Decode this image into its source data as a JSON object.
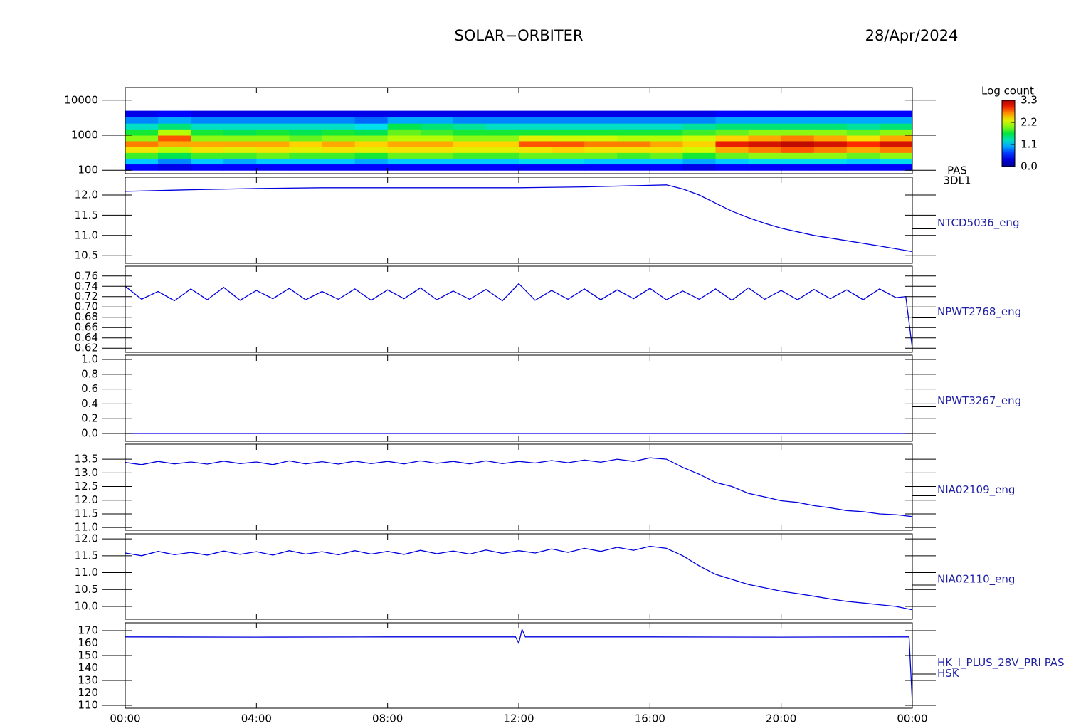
{
  "figure": {
    "title": "SOLAR−ORBITER",
    "date": "28/Apr/2024",
    "xlim": [
      0,
      24
    ],
    "xticks": [
      {
        "value": 0,
        "label": "00:00"
      },
      {
        "value": 4,
        "label": "04:00"
      },
      {
        "value": 8,
        "label": "08:00"
      },
      {
        "value": 12,
        "label": "12:00"
      },
      {
        "value": 16,
        "label": "16:00"
      },
      {
        "value": 20,
        "label": "20:00"
      },
      {
        "value": 24,
        "label": "00:00"
      }
    ]
  },
  "chart_data": [
    {
      "type": "heatmap",
      "label": [
        "PAS",
        "3DL1"
      ],
      "log_y": true,
      "ylim": [
        80,
        23000
      ],
      "yticks": [
        100,
        1000,
        10000
      ],
      "x": [
        0,
        1,
        2,
        3,
        4,
        5,
        6,
        7,
        8,
        9,
        10,
        11,
        12,
        13,
        14,
        15,
        16,
        17,
        18,
        19,
        20,
        21,
        22,
        23,
        24
      ],
      "y": [
        100,
        150,
        220,
        320,
        470,
        690,
        1000,
        1500,
        2200,
        3300,
        5000
      ],
      "z": [
        [
          0.5,
          1.1,
          1.8,
          2.4,
          2.7,
          2.0,
          1.7,
          1.3,
          0.9,
          0.4
        ],
        [
          0.4,
          0.9,
          1.6,
          2.1,
          2.6,
          2.8,
          2.1,
          1.5,
          1.0,
          0.5
        ],
        [
          0.5,
          1.1,
          1.8,
          2.4,
          2.6,
          2.0,
          1.7,
          1.3,
          0.9,
          0.4
        ],
        [
          0.5,
          1.0,
          1.8,
          2.3,
          2.6,
          2.0,
          1.6,
          1.3,
          0.9,
          0.4
        ],
        [
          0.5,
          1.1,
          1.9,
          2.4,
          2.6,
          2.0,
          1.7,
          1.3,
          0.9,
          0.4
        ],
        [
          0.5,
          1.1,
          1.8,
          2.3,
          2.5,
          1.9,
          1.6,
          1.3,
          0.9,
          0.4
        ],
        [
          0.5,
          1.1,
          1.8,
          2.4,
          2.6,
          2.0,
          1.7,
          1.3,
          0.9,
          0.4
        ],
        [
          0.5,
          1.0,
          1.7,
          2.3,
          2.5,
          2.0,
          1.6,
          1.2,
          0.8,
          0.4
        ],
        [
          0.5,
          1.1,
          1.9,
          2.4,
          2.6,
          2.1,
          1.9,
          1.6,
          1.0,
          0.4
        ],
        [
          0.5,
          1.1,
          1.9,
          2.4,
          2.6,
          2.1,
          1.8,
          1.5,
          1.0,
          0.4
        ],
        [
          0.5,
          1.1,
          1.8,
          2.3,
          2.5,
          2.0,
          1.7,
          1.4,
          0.9,
          0.4
        ],
        [
          0.5,
          1.1,
          1.8,
          2.3,
          2.5,
          2.0,
          1.7,
          1.3,
          0.9,
          0.4
        ],
        [
          0.5,
          1.2,
          1.9,
          2.4,
          2.8,
          2.3,
          1.7,
          1.3,
          0.9,
          0.4
        ],
        [
          0.5,
          1.2,
          1.9,
          2.5,
          2.8,
          2.2,
          1.7,
          1.3,
          0.9,
          0.4
        ],
        [
          0.5,
          1.1,
          1.9,
          2.4,
          2.7,
          2.2,
          1.7,
          1.3,
          0.9,
          0.4
        ],
        [
          0.5,
          1.1,
          1.8,
          2.4,
          2.7,
          2.1,
          1.7,
          1.3,
          0.9,
          0.4
        ],
        [
          0.5,
          1.1,
          1.9,
          2.4,
          2.6,
          2.1,
          1.7,
          1.3,
          0.9,
          0.4
        ],
        [
          0.4,
          1.0,
          1.7,
          2.2,
          2.5,
          2.2,
          1.8,
          1.4,
          0.9,
          0.4
        ],
        [
          0.5,
          1.1,
          1.9,
          2.6,
          3.0,
          2.5,
          1.9,
          1.5,
          1.0,
          0.5
        ],
        [
          0.5,
          1.2,
          2.0,
          2.7,
          3.1,
          2.6,
          2.0,
          1.5,
          1.0,
          0.5
        ],
        [
          0.5,
          1.2,
          2.0,
          2.8,
          3.2,
          2.7,
          2.0,
          1.5,
          1.0,
          0.5
        ],
        [
          0.5,
          1.2,
          2.0,
          2.7,
          3.1,
          2.6,
          2.0,
          1.5,
          1.0,
          0.5
        ],
        [
          0.5,
          1.1,
          1.9,
          2.6,
          2.9,
          2.4,
          1.9,
          1.4,
          1.0,
          0.5
        ],
        [
          0.5,
          1.2,
          2.0,
          2.7,
          3.1,
          2.6,
          2.0,
          1.5,
          1.0,
          0.5
        ]
      ],
      "colorbar": {
        "title": "Log count",
        "lim": [
          0,
          3.3
        ],
        "ticks": [
          {
            "value": 0,
            "label": "0.0"
          },
          1.1,
          2.2,
          3.3
        ]
      }
    },
    {
      "type": "line",
      "label": [
        "NTCD5036_eng"
      ],
      "color": "#0000dd",
      "ylim": [
        10.31,
        12.44
      ],
      "yticks": [
        10.5,
        {
          "value": 11,
          "label": "11.0"
        },
        11.5,
        {
          "value": 12,
          "label": "12.0"
        }
      ],
      "x": [
        0,
        2,
        4,
        6,
        8,
        10,
        12,
        14,
        16,
        16.5,
        17,
        17.5,
        18,
        18.5,
        19,
        19.5,
        20,
        21,
        22,
        23,
        24
      ],
      "values": [
        12.09,
        12.13,
        12.16,
        12.18,
        12.18,
        12.18,
        12.18,
        12.2,
        12.24,
        12.25,
        12.15,
        12.0,
        11.8,
        11.6,
        11.44,
        11.3,
        11.18,
        11.0,
        10.87,
        10.74,
        10.6
      ]
    },
    {
      "type": "line",
      "label": [
        "NPWT2768_eng"
      ],
      "color": "#0000dd",
      "ylim": [
        0.612,
        0.779
      ],
      "yticks": [
        {
          "value": 0.62,
          "label": "0.62"
        },
        0.64,
        0.66,
        0.68,
        {
          "value": 0.7,
          "label": "0.70"
        },
        0.72,
        0.74,
        0.76
      ],
      "x": [
        0,
        0.5,
        1,
        1.5,
        2,
        2.5,
        3,
        3.5,
        4,
        4.5,
        5,
        5.5,
        6,
        6.5,
        7,
        7.5,
        8,
        8.5,
        9,
        9.5,
        10,
        10.5,
        11,
        11.5,
        12,
        12.5,
        13,
        13.5,
        14,
        14.5,
        15,
        15.5,
        16,
        16.5,
        17,
        17.5,
        18,
        18.5,
        19,
        19.5,
        20,
        20.5,
        21,
        21.5,
        22,
        22.5,
        23,
        23.5,
        23.8,
        24
      ],
      "values": [
        0.74,
        0.715,
        0.73,
        0.712,
        0.735,
        0.714,
        0.738,
        0.713,
        0.732,
        0.716,
        0.736,
        0.714,
        0.73,
        0.715,
        0.735,
        0.713,
        0.733,
        0.716,
        0.737,
        0.714,
        0.731,
        0.715,
        0.734,
        0.712,
        0.745,
        0.713,
        0.732,
        0.715,
        0.735,
        0.714,
        0.733,
        0.716,
        0.736,
        0.714,
        0.731,
        0.715,
        0.735,
        0.713,
        0.737,
        0.715,
        0.732,
        0.714,
        0.734,
        0.716,
        0.733,
        0.714,
        0.735,
        0.718,
        0.72,
        0.62
      ]
    },
    {
      "type": "line",
      "label": [
        "NPWT3267_eng"
      ],
      "color": "#0000dd",
      "ylim": [
        -0.106,
        1.058
      ],
      "yticks": [
        {
          "value": 0,
          "label": "0.0"
        },
        0.2,
        0.4,
        0.6,
        0.8,
        {
          "value": 1,
          "label": "1.0"
        }
      ],
      "x": [
        0,
        24
      ],
      "values": [
        0,
        0
      ]
    },
    {
      "type": "line",
      "label": [
        "NIA02109_eng"
      ],
      "color": "#0000dd",
      "ylim": [
        10.9,
        14.05
      ],
      "yticks": [
        {
          "value": 11,
          "label": "11.0"
        },
        11.5,
        {
          "value": 12,
          "label": "12.0"
        },
        12.5,
        {
          "value": 13,
          "label": "13.0"
        },
        13.5
      ],
      "x": [
        0,
        0.5,
        1,
        1.5,
        2,
        2.5,
        3,
        3.5,
        4,
        4.5,
        5,
        5.5,
        6,
        6.5,
        7,
        7.5,
        8,
        8.5,
        9,
        9.5,
        10,
        10.5,
        11,
        11.5,
        12,
        12.5,
        13,
        13.5,
        14,
        14.5,
        15,
        15.5,
        16,
        16.5,
        17,
        17.5,
        18,
        18.5,
        19,
        19.5,
        20,
        20.5,
        21,
        21.5,
        22,
        22.5,
        23,
        23.5,
        24
      ],
      "values": [
        13.38,
        13.3,
        13.42,
        13.33,
        13.4,
        13.32,
        13.43,
        13.34,
        13.4,
        13.3,
        13.44,
        13.33,
        13.41,
        13.32,
        13.43,
        13.34,
        13.42,
        13.33,
        13.44,
        13.35,
        13.42,
        13.33,
        13.44,
        13.34,
        13.42,
        13.36,
        13.45,
        13.37,
        13.47,
        13.39,
        13.5,
        13.42,
        13.55,
        13.5,
        13.2,
        12.95,
        12.65,
        12.5,
        12.25,
        12.12,
        11.98,
        11.92,
        11.8,
        11.72,
        11.62,
        11.58,
        11.5,
        11.47,
        11.4
      ]
    },
    {
      "type": "line",
      "label": [
        "NIA02110_eng"
      ],
      "color": "#0000dd",
      "ylim": [
        9.62,
        12.15
      ],
      "yticks": [
        {
          "value": 10,
          "label": "10.0"
        },
        10.5,
        {
          "value": 11,
          "label": "11.0"
        },
        11.5,
        {
          "value": 12,
          "label": "12.0"
        }
      ],
      "x": [
        0,
        0.5,
        1,
        1.5,
        2,
        2.5,
        3,
        3.5,
        4,
        4.5,
        5,
        5.5,
        6,
        6.5,
        7,
        7.5,
        8,
        8.5,
        9,
        9.5,
        10,
        10.5,
        11,
        11.5,
        12,
        12.5,
        13,
        13.5,
        14,
        14.5,
        15,
        15.5,
        16,
        16.5,
        17,
        17.5,
        18,
        18.5,
        19,
        19.5,
        20,
        20.5,
        21,
        21.5,
        22,
        22.5,
        23,
        23.5,
        24
      ],
      "values": [
        11.58,
        11.5,
        11.63,
        11.53,
        11.6,
        11.52,
        11.64,
        11.54,
        11.62,
        11.52,
        11.65,
        11.55,
        11.62,
        11.53,
        11.65,
        11.55,
        11.63,
        11.54,
        11.66,
        11.56,
        11.64,
        11.55,
        11.67,
        11.57,
        11.65,
        11.58,
        11.7,
        11.6,
        11.72,
        11.63,
        11.75,
        11.66,
        11.78,
        11.72,
        11.5,
        11.2,
        10.95,
        10.8,
        10.65,
        10.55,
        10.45,
        10.38,
        10.3,
        10.22,
        10.15,
        10.1,
        10.05,
        10.0,
        9.9
      ]
    },
    {
      "type": "line",
      "label": [
        "HK_I_PLUS_28V_PRI PAS",
        "HSK"
      ],
      "color": "#0000dd",
      "ylim": [
        107.7,
        176.3
      ],
      "yticks": [
        110,
        120,
        130,
        140,
        150,
        160,
        170
      ],
      "x": [
        0,
        4,
        8,
        11.9,
        12,
        12.1,
        12.2,
        16,
        20,
        23.9,
        24
      ],
      "values": [
        165,
        164.8,
        165,
        165,
        160,
        171,
        165,
        165,
        164.8,
        165,
        112
      ]
    }
  ]
}
